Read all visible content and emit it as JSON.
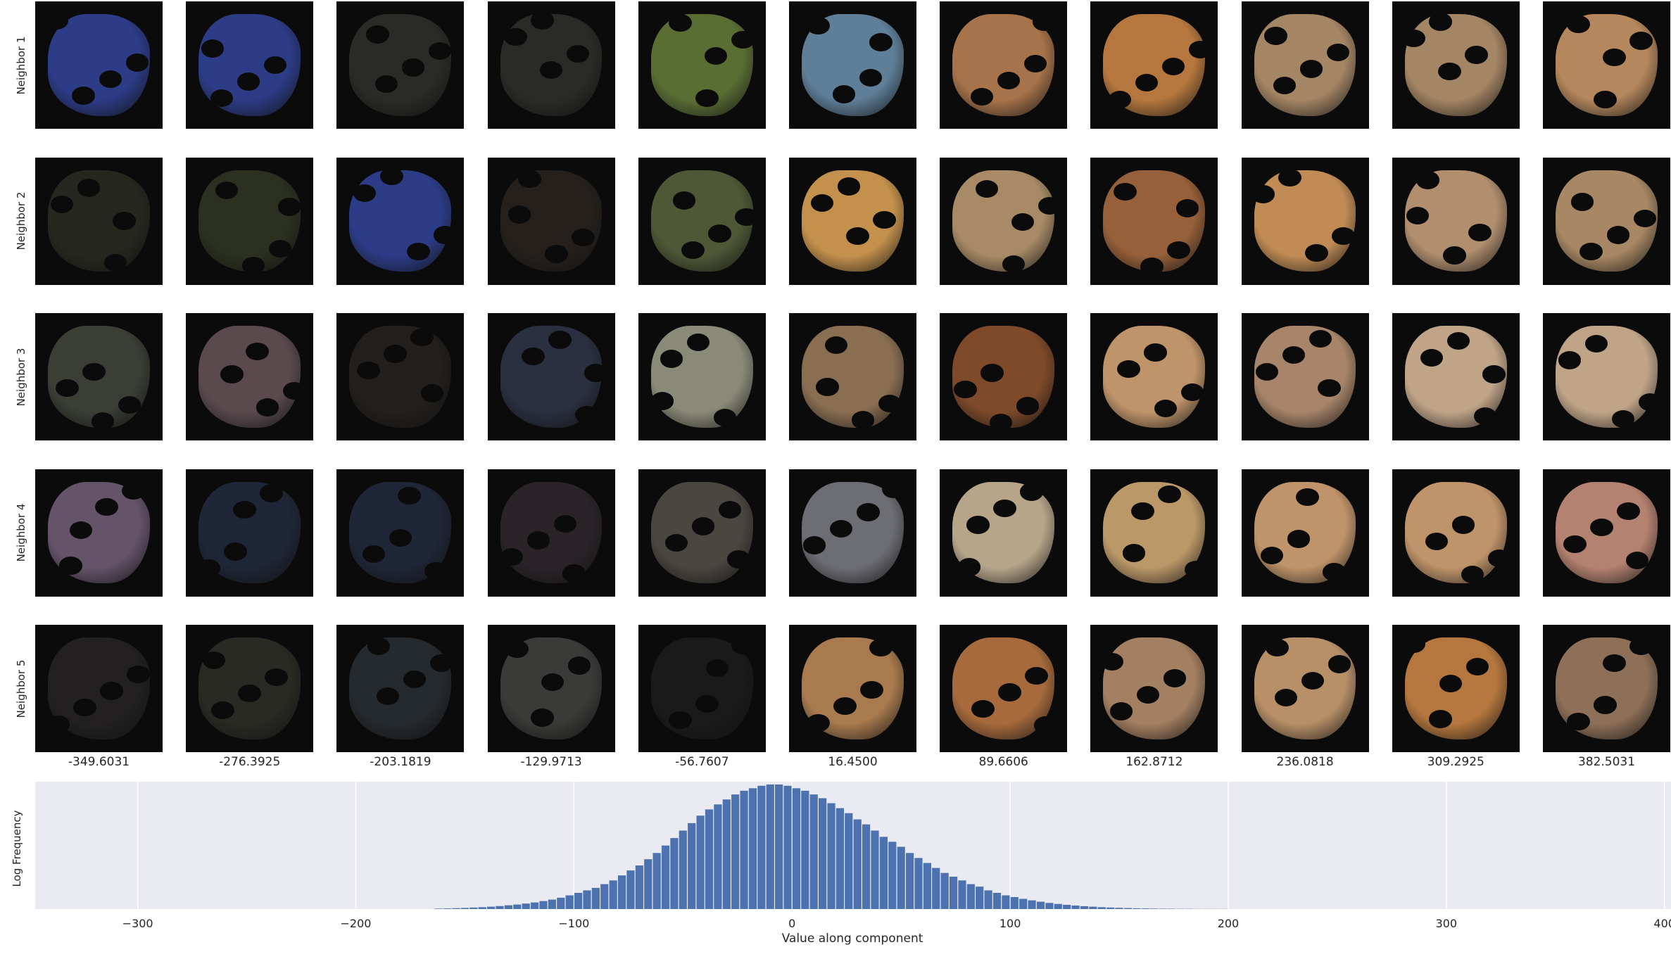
{
  "chart_data": {
    "type": "bar",
    "xlabel": "Value along component",
    "ylabel": "Log Frequency",
    "xlim": [
      -347,
      403
    ],
    "xticks": [
      -300,
      -200,
      -100,
      0,
      100,
      200,
      300,
      400
    ],
    "grid": true,
    "background": "#eaeaf2",
    "bar_color": "#4c72b0",
    "bins_start": -164,
    "bin_width": 4,
    "frequencies": [
      0.4,
      0.5,
      0.7,
      0.9,
      1.2,
      1.5,
      1.9,
      2.4,
      3.0,
      3.6,
      4.4,
      5.3,
      6.4,
      7.6,
      9.1,
      11,
      13,
      15,
      17,
      20,
      23,
      27,
      31,
      35,
      40,
      45,
      51,
      57,
      63,
      69,
      75,
      80,
      84,
      88,
      92,
      95,
      97,
      99,
      100,
      100,
      99,
      97,
      95,
      92,
      89,
      85,
      81,
      77,
      72,
      68,
      63,
      58,
      54,
      50,
      45,
      41,
      37,
      33,
      29,
      26,
      23,
      20,
      18,
      15,
      13,
      11,
      9.6,
      8.2,
      7.0,
      5.9,
      4.9,
      4.1,
      3.4,
      2.8,
      2.3,
      1.9,
      1.5,
      1.2,
      1.0,
      0.8,
      0.6,
      0.5,
      0.4,
      0.3,
      0.3,
      0.2,
      0.2,
      0.1,
      0.1,
      0.1,
      0.1
    ],
    "neighbor_rows": [
      "Neighbor 1",
      "Neighbor 2",
      "Neighbor 3",
      "Neighbor 4",
      "Neighbor 5"
    ],
    "column_values": [
      "-349.6031",
      "-276.3925",
      "-203.1819",
      "-129.9713",
      "-56.7607",
      "16.4500",
      "89.6606",
      "162.8712",
      "236.0818",
      "309.2925",
      "382.5031"
    ],
    "thumbnail_colors": [
      [
        "#2c3c86",
        "#2c3c86",
        "#2a2a26",
        "#2a2a26",
        "#5a6e34",
        "#5f7f98",
        "#a7734a",
        "#b5773e",
        "#a48564",
        "#a48564",
        "#b4875c"
      ],
      [
        "#26281f",
        "#2b3020",
        "#2c3c86",
        "#25201c",
        "#4e5836",
        "#c4914d",
        "#a88b66",
        "#96603a",
        "#c08b55",
        "#b08e6e",
        "#a88864"
      ],
      [
        "#3a3e35",
        "#5a4a4e",
        "#221f1c",
        "#2a3040",
        "#8a8a78",
        "#8a6e52",
        "#7e4a2a",
        "#c0946a",
        "#a8856a",
        "#c0a488",
        "#c0a488"
      ],
      [
        "#65536a",
        "#1f2637",
        "#1f2637",
        "#2a2428",
        "#4a4640",
        "#6d6e74",
        "#b7a58a",
        "#bb9868",
        "#c0946a",
        "#c0946a",
        "#b48270"
      ],
      [
        "#222020",
        "#2a2a24",
        "#252a2e",
        "#3a3a38",
        "#1a1a1a",
        "#a87a4e",
        "#a66a3c",
        "#a48062",
        "#b89068",
        "#b5773e",
        "#8e7058"
      ]
    ]
  }
}
